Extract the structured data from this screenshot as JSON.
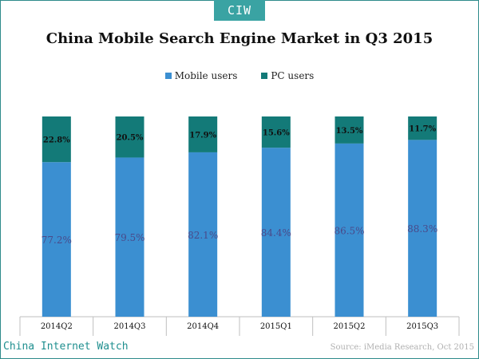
{
  "badge": "CIW",
  "footer": {
    "brand": "China Internet Watch",
    "source": "Source: iMedia Research, Oct 2015"
  },
  "colors": {
    "mobile": "#3b8fd1",
    "pc": "#137a78",
    "frame": "#2e8b8b"
  },
  "chart_data": {
    "type": "bar",
    "stacked": true,
    "title": "China Mobile Search Engine Market in Q3 2015",
    "categories": [
      "2014Q2",
      "2014Q3",
      "2014Q4",
      "2015Q1",
      "2015Q2",
      "2015Q3"
    ],
    "series": [
      {
        "name": "Mobile users",
        "values": [
          77.2,
          79.5,
          82.1,
          84.4,
          86.5,
          88.3
        ],
        "labels": [
          "77.2%",
          "79.5%",
          "82.1%",
          "84.4%",
          "86.5%",
          "88.3%"
        ]
      },
      {
        "name": "PC users",
        "values": [
          22.8,
          20.5,
          17.9,
          15.6,
          13.5,
          11.7
        ],
        "labels": [
          "22.8%",
          "20.5%",
          "17.9%",
          "15.6%",
          "13.5%",
          "11.7%"
        ]
      }
    ],
    "ylim": [
      0,
      100
    ],
    "legend": "top-center",
    "grid": false
  }
}
